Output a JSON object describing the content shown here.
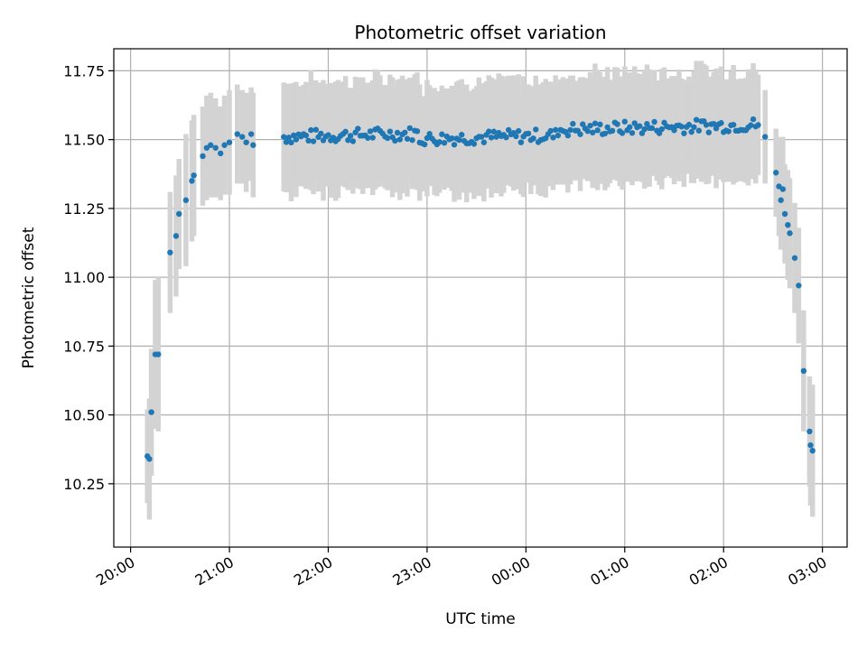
{
  "chart_data": {
    "type": "scatter",
    "title": "Photometric offset variation",
    "xlabel": "UTC time",
    "ylabel": "Photometric offset",
    "x_unit": "hours (UTC, 20:00 = 20, 03:00 next day = 27)",
    "xlim": [
      19.83,
      27.25
    ],
    "ylim": [
      10.02,
      11.83
    ],
    "x_ticks": [
      {
        "value": 20,
        "label": "20:00"
      },
      {
        "value": 21,
        "label": "21:00"
      },
      {
        "value": 22,
        "label": "22:00"
      },
      {
        "value": 23,
        "label": "23:00"
      },
      {
        "value": 24,
        "label": "00:00"
      },
      {
        "value": 25,
        "label": "01:00"
      },
      {
        "value": 26,
        "label": "02:00"
      },
      {
        "value": 27,
        "label": "03:00"
      }
    ],
    "y_ticks": [
      {
        "value": 10.25,
        "label": "10.25"
      },
      {
        "value": 10.5,
        "label": "10.50"
      },
      {
        "value": 10.75,
        "label": "10.75"
      },
      {
        "value": 11.0,
        "label": "11.00"
      },
      {
        "value": 11.25,
        "label": "11.25"
      },
      {
        "value": 11.5,
        "label": "11.50"
      },
      {
        "value": 11.75,
        "label": "11.75"
      }
    ],
    "grid": true,
    "colors": {
      "point": "#1f77b4",
      "errorbar": "#d3d3d3",
      "grid": "#b0b0b0"
    },
    "edge_points": [
      {
        "x": 20.17,
        "y": 10.35,
        "err": 0.17
      },
      {
        "x": 20.19,
        "y": 10.34,
        "err": 0.22
      },
      {
        "x": 20.21,
        "y": 10.51,
        "err": 0.23
      },
      {
        "x": 20.25,
        "y": 10.72,
        "err": 0.27
      },
      {
        "x": 20.28,
        "y": 10.72,
        "err": 0.28
      },
      {
        "x": 20.4,
        "y": 11.09,
        "err": 0.22
      },
      {
        "x": 20.46,
        "y": 11.15,
        "err": 0.22
      },
      {
        "x": 20.49,
        "y": 11.23,
        "err": 0.2
      },
      {
        "x": 20.56,
        "y": 11.28,
        "err": 0.24
      },
      {
        "x": 20.62,
        "y": 11.35,
        "err": 0.22
      },
      {
        "x": 20.64,
        "y": 11.37,
        "err": 0.22
      },
      {
        "x": 20.73,
        "y": 11.44,
        "err": 0.18
      },
      {
        "x": 20.77,
        "y": 11.47,
        "err": 0.19
      },
      {
        "x": 20.81,
        "y": 11.48,
        "err": 0.19
      },
      {
        "x": 20.86,
        "y": 11.47,
        "err": 0.18
      },
      {
        "x": 20.91,
        "y": 11.45,
        "err": 0.17
      },
      {
        "x": 20.95,
        "y": 11.48,
        "err": 0.18
      },
      {
        "x": 21.0,
        "y": 11.49,
        "err": 0.19
      },
      {
        "x": 21.08,
        "y": 11.52,
        "err": 0.18
      },
      {
        "x": 21.13,
        "y": 11.51,
        "err": 0.17
      },
      {
        "x": 21.17,
        "y": 11.49,
        "err": 0.18
      },
      {
        "x": 21.22,
        "y": 11.52,
        "err": 0.17
      },
      {
        "x": 21.24,
        "y": 11.48,
        "err": 0.19
      },
      {
        "x": 26.42,
        "y": 11.51,
        "err": 0.17
      },
      {
        "x": 26.53,
        "y": 11.38,
        "err": 0.16
      },
      {
        "x": 26.56,
        "y": 11.33,
        "err": 0.18
      },
      {
        "x": 26.58,
        "y": 11.28,
        "err": 0.18
      },
      {
        "x": 26.6,
        "y": 11.32,
        "err": 0.19
      },
      {
        "x": 26.62,
        "y": 11.23,
        "err": 0.18
      },
      {
        "x": 26.65,
        "y": 11.19,
        "err": 0.2
      },
      {
        "x": 26.67,
        "y": 11.16,
        "err": 0.2
      },
      {
        "x": 26.72,
        "y": 11.07,
        "err": 0.2
      },
      {
        "x": 26.76,
        "y": 10.97,
        "err": 0.21
      },
      {
        "x": 26.81,
        "y": 10.66,
        "err": 0.22
      },
      {
        "x": 26.87,
        "y": 10.44,
        "err": 0.2
      },
      {
        "x": 26.88,
        "y": 10.39,
        "err": 0.22
      },
      {
        "x": 26.9,
        "y": 10.37,
        "err": 0.24
      }
    ],
    "plateau": {
      "x_start": 21.55,
      "x_end": 26.37,
      "gap": [
        21.25,
        21.45
      ],
      "spacing": 0.025,
      "y_start": 11.51,
      "y_end": 11.555,
      "y_scatter": 0.025,
      "err": 0.2
    }
  }
}
